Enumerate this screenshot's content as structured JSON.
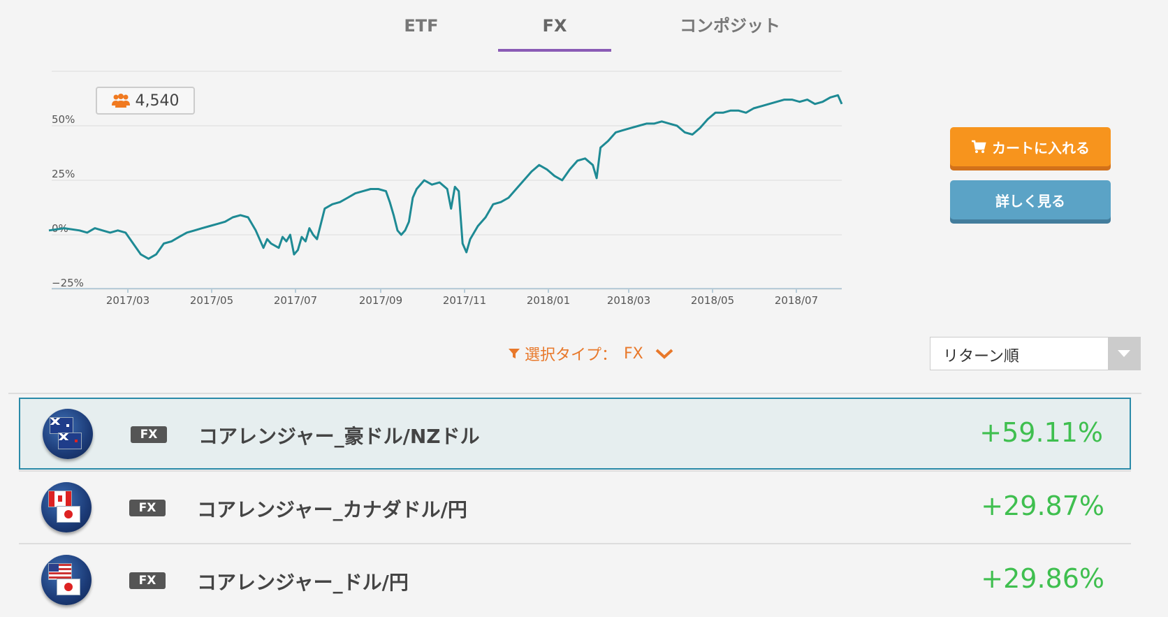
{
  "tabs": [
    {
      "label": "ETF",
      "active": false
    },
    {
      "label": "FX",
      "active": true
    },
    {
      "label": "コンポジット",
      "active": false
    }
  ],
  "users_count": "4,540",
  "buttons": {
    "cart": "カートに入れる",
    "detail": "詳しく見る"
  },
  "filter": {
    "text": "選択タイプ：",
    "value": "FX"
  },
  "sort": {
    "selected": "リターン順"
  },
  "colors": {
    "line": "#1e8a94",
    "accent": "#f7941d",
    "detail": "#5ba3c6",
    "return": "#3fbf4f",
    "tab_underline": "#8a5bb5"
  },
  "strategies": [
    {
      "badge": "FX",
      "name": "コアレンジャー_豪ドル/NZドル",
      "return": "+59.11%",
      "flags": [
        "australia",
        "new-zealand"
      ],
      "selected": true
    },
    {
      "badge": "FX",
      "name": "コアレンジャー_カナダドル/円",
      "return": "+29.87%",
      "flags": [
        "canada",
        "japan"
      ],
      "selected": false
    },
    {
      "badge": "FX",
      "name": "コアレンジャー_ドル/円",
      "return": "+29.86%",
      "flags": [
        "usa",
        "japan"
      ],
      "selected": false
    }
  ],
  "chart_data": {
    "type": "line",
    "y_ticks": [
      "50%",
      "25%",
      "0%",
      "−25%"
    ],
    "x_ticks": [
      "2017/03",
      "2017/05",
      "2017/07",
      "2017/09",
      "2017/11",
      "2018/01",
      "2018/03",
      "2018/05",
      "2018/07"
    ],
    "ylim": [
      -25,
      75
    ],
    "grid": true,
    "series": [
      {
        "points": [
          [
            0,
            2
          ],
          [
            4,
            3
          ],
          [
            8,
            2
          ],
          [
            10,
            1
          ],
          [
            12,
            3
          ],
          [
            14,
            2
          ],
          [
            16,
            1
          ],
          [
            18,
            2
          ],
          [
            20,
            1
          ],
          [
            22,
            -4
          ],
          [
            24,
            -9
          ],
          [
            26,
            -11
          ],
          [
            28,
            -9
          ],
          [
            30,
            -4
          ],
          [
            32,
            -3
          ],
          [
            34,
            -1
          ],
          [
            36,
            1
          ],
          [
            38,
            2
          ],
          [
            40,
            3
          ],
          [
            42,
            4
          ],
          [
            44,
            5
          ],
          [
            46,
            6
          ],
          [
            48,
            8
          ],
          [
            50,
            9
          ],
          [
            52,
            8
          ],
          [
            54,
            2
          ],
          [
            56,
            -6
          ],
          [
            57,
            -2
          ],
          [
            58,
            -4
          ],
          [
            60,
            -6
          ],
          [
            61,
            -1
          ],
          [
            62,
            -3
          ],
          [
            63,
            0
          ],
          [
            64,
            -9
          ],
          [
            65,
            -7
          ],
          [
            66,
            -1
          ],
          [
            67,
            -3
          ],
          [
            68,
            3
          ],
          [
            69,
            0
          ],
          [
            70,
            -2
          ],
          [
            72,
            12
          ],
          [
            74,
            14
          ],
          [
            76,
            15
          ],
          [
            78,
            17
          ],
          [
            80,
            19
          ],
          [
            82,
            20
          ],
          [
            84,
            21
          ],
          [
            86,
            21
          ],
          [
            88,
            20
          ],
          [
            89,
            15
          ],
          [
            90,
            9
          ],
          [
            91,
            2
          ],
          [
            92,
            0
          ],
          [
            93,
            2
          ],
          [
            94,
            6
          ],
          [
            95,
            17
          ],
          [
            96,
            21
          ],
          [
            98,
            25
          ],
          [
            100,
            23
          ],
          [
            102,
            24
          ],
          [
            104,
            21
          ],
          [
            105,
            12
          ],
          [
            106,
            22
          ],
          [
            107,
            20
          ],
          [
            108,
            -4
          ],
          [
            109,
            -8
          ],
          [
            110,
            -2
          ],
          [
            112,
            4
          ],
          [
            114,
            8
          ],
          [
            116,
            14
          ],
          [
            118,
            15
          ],
          [
            120,
            17
          ],
          [
            122,
            21
          ],
          [
            124,
            25
          ],
          [
            126,
            29
          ],
          [
            128,
            32
          ],
          [
            130,
            30
          ],
          [
            132,
            27
          ],
          [
            134,
            25
          ],
          [
            136,
            30
          ],
          [
            138,
            34
          ],
          [
            140,
            35
          ],
          [
            142,
            32
          ],
          [
            143,
            26
          ],
          [
            144,
            40
          ],
          [
            146,
            43
          ],
          [
            148,
            47
          ],
          [
            150,
            48
          ],
          [
            152,
            49
          ],
          [
            154,
            50
          ],
          [
            156,
            51
          ],
          [
            158,
            51
          ],
          [
            160,
            52
          ],
          [
            162,
            51
          ],
          [
            164,
            50
          ],
          [
            166,
            47
          ],
          [
            168,
            46
          ],
          [
            170,
            49
          ],
          [
            172,
            53
          ],
          [
            174,
            56
          ],
          [
            176,
            56
          ],
          [
            178,
            57
          ],
          [
            180,
            57
          ],
          [
            182,
            56
          ],
          [
            184,
            58
          ],
          [
            186,
            59
          ],
          [
            188,
            60
          ],
          [
            190,
            61
          ],
          [
            192,
            62
          ],
          [
            194,
            62
          ],
          [
            196,
            61
          ],
          [
            198,
            62
          ],
          [
            200,
            60
          ],
          [
            202,
            61
          ],
          [
            204,
            63
          ],
          [
            206,
            64
          ],
          [
            207,
            60
          ]
        ]
      }
    ]
  }
}
